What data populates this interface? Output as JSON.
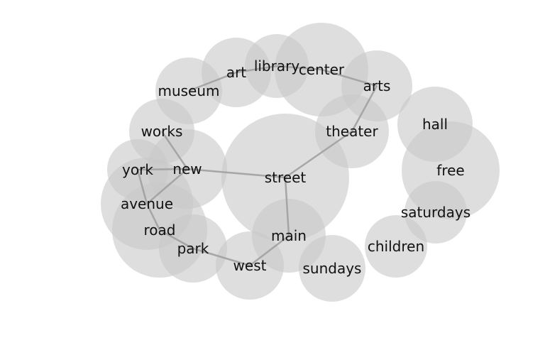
{
  "colors": {
    "bubble": "#c8c8c8",
    "edge": "#a0a0a0",
    "text": "#111111",
    "background": "#ffffff"
  },
  "nodes": [
    {
      "id": "library",
      "label": "library"
    },
    {
      "id": "art",
      "label": "art"
    },
    {
      "id": "center",
      "label": "center"
    },
    {
      "id": "museum",
      "label": "museum"
    },
    {
      "id": "arts",
      "label": "arts"
    },
    {
      "id": "hall",
      "label": "hall"
    },
    {
      "id": "theater",
      "label": "theater"
    },
    {
      "id": "works",
      "label": "works"
    },
    {
      "id": "new",
      "label": "new"
    },
    {
      "id": "york",
      "label": "york"
    },
    {
      "id": "street",
      "label": "street"
    },
    {
      "id": "free",
      "label": "free"
    },
    {
      "id": "avenue",
      "label": "avenue"
    },
    {
      "id": "saturdays",
      "label": "saturdays"
    },
    {
      "id": "road",
      "label": "road"
    },
    {
      "id": "main",
      "label": "main"
    },
    {
      "id": "park",
      "label": "park"
    },
    {
      "id": "children",
      "label": "children"
    },
    {
      "id": "west",
      "label": "west"
    },
    {
      "id": "sundays",
      "label": "sundays"
    }
  ],
  "edges": [
    [
      "museum",
      "art"
    ],
    [
      "art",
      "library"
    ],
    [
      "library",
      "center"
    ],
    [
      "center",
      "arts"
    ],
    [
      "arts",
      "theater"
    ],
    [
      "theater",
      "street"
    ],
    [
      "street",
      "new"
    ],
    [
      "new",
      "works"
    ],
    [
      "new",
      "york"
    ],
    [
      "york",
      "avenue"
    ],
    [
      "avenue",
      "new"
    ],
    [
      "avenue",
      "road"
    ],
    [
      "road",
      "park"
    ],
    [
      "park",
      "west"
    ],
    [
      "west",
      "main"
    ],
    [
      "main",
      "street"
    ]
  ]
}
